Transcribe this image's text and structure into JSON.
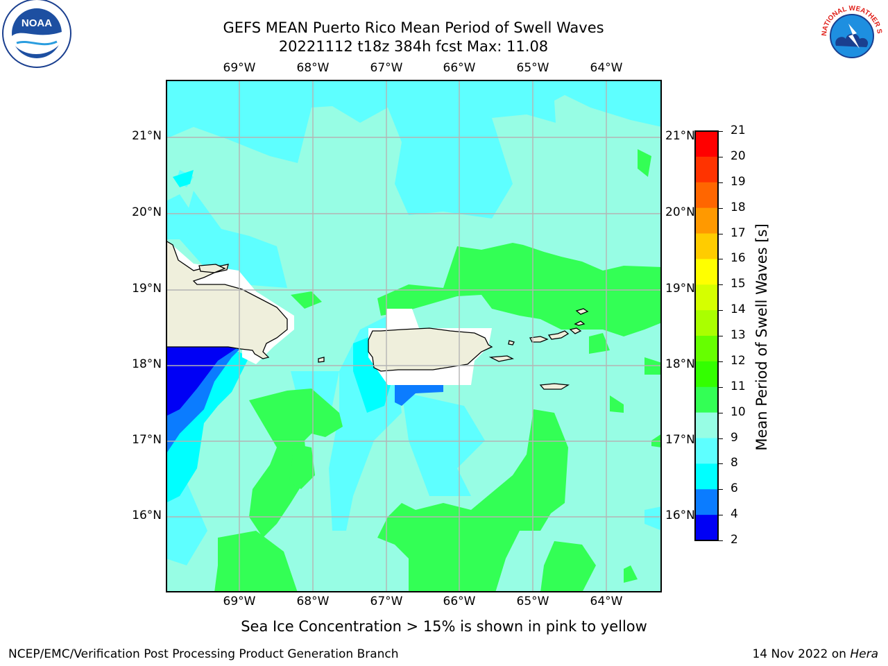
{
  "header": {
    "title_line1": "GEFS MEAN Puerto Rico Mean Period of Swell Waves",
    "title_line2": "20221112 t18z 384h fcst   Max: 11.08"
  },
  "logos": {
    "left": "NOAA",
    "right": "NATIONAL WEATHER SERVICE"
  },
  "map": {
    "lon_labels": [
      "69°W",
      "68°W",
      "67°W",
      "66°W",
      "65°W",
      "64°W"
    ],
    "lat_labels": [
      "21°N",
      "20°N",
      "19°N",
      "18°N",
      "17°N",
      "16°N"
    ],
    "colors": {
      "ocean_base": "#97fde4",
      "band_8_9": "#5effff",
      "band_10_11": "#33ff55",
      "band_6_8": "#00ffff",
      "band_4_6": "#0b7cff",
      "band_2_4": "#0000f5",
      "land": "#efefdc",
      "gridline": "#b4b4b4"
    }
  },
  "colorbar": {
    "label": "Mean Period of Swell Waves [s]",
    "ticks": [
      "21",
      "20",
      "19",
      "18",
      "17",
      "16",
      "15",
      "14",
      "13",
      "12",
      "11",
      "10",
      "9",
      "8",
      "6",
      "4",
      "2"
    ],
    "band_colors": [
      "#ff0000",
      "#ff3300",
      "#ff6600",
      "#ff9900",
      "#ffcc00",
      "#ffff00",
      "#d5ff00",
      "#aaff00",
      "#66ff00",
      "#33ff00",
      "#33ff55",
      "#97fde4",
      "#5effff",
      "#00ffff",
      "#0b7cff",
      "#0000f5"
    ]
  },
  "note": "Sea Ice Concentration > 15% is shown in pink to yellow",
  "footer": {
    "left": "NCEP/EMC/Verification Post Processing Product Generation Branch",
    "date": "14 Nov 2022 on ",
    "host": "Hera"
  }
}
